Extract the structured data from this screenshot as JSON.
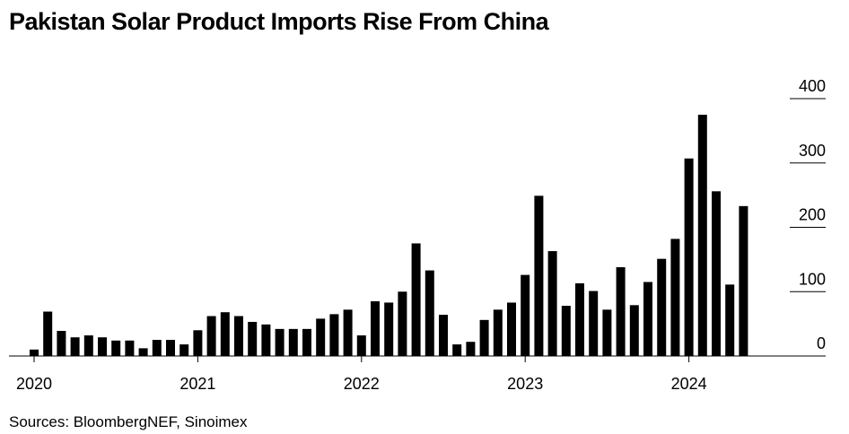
{
  "chart_data": {
    "type": "bar",
    "title": "Pakistan Solar Product Imports Rise From China",
    "source": "Sources: BloombergNEF, Sinoimex",
    "color": "#000000",
    "categories": [
      "2020",
      null,
      null,
      null,
      null,
      null,
      null,
      null,
      null,
      null,
      null,
      null,
      "2021",
      null,
      null,
      null,
      null,
      null,
      null,
      null,
      null,
      null,
      null,
      null,
      "2022",
      null,
      null,
      null,
      null,
      null,
      null,
      null,
      null,
      null,
      null,
      null,
      "2023",
      null,
      null,
      null,
      null,
      null,
      null,
      null,
      null,
      null,
      null,
      null,
      "2024",
      null,
      null,
      null,
      null
    ],
    "values": [
      10,
      69,
      39,
      29,
      32,
      29,
      24,
      24,
      12,
      25,
      25,
      18,
      40,
      62,
      68,
      62,
      53,
      49,
      42,
      42,
      42,
      58,
      65,
      72,
      32,
      85,
      83,
      100,
      175,
      133,
      64,
      18,
      22,
      56,
      72,
      83,
      126,
      249,
      163,
      78,
      113,
      101,
      72,
      138,
      79,
      115,
      151,
      182,
      307,
      375,
      256,
      111,
      233
    ],
    "ylim": [
      0,
      400
    ],
    "yticks": [
      0,
      100,
      200,
      300,
      400
    ]
  }
}
